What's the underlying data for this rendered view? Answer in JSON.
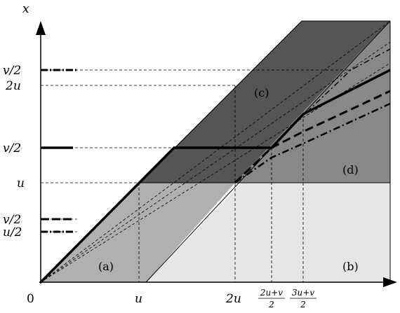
{
  "axes": {
    "y_label": "x",
    "origin_label": "0",
    "x_ticks": [
      "u",
      "2u"
    ],
    "x_frac_ticks": [
      {
        "num": "2u+v",
        "den": "2"
      },
      {
        "num": "3u+v",
        "den": "2"
      }
    ],
    "y_ticks": [
      "v/2",
      "2u",
      "v/2",
      "u",
      "v/2",
      "u/2"
    ]
  },
  "regions": [
    "(a)",
    "(b)",
    "(c)",
    "(d)"
  ],
  "colors": {
    "region_a": "#b0b0b0",
    "region_b": "#e6e6e6",
    "region_c": "#555555",
    "region_d": "#888888",
    "lines": "#000000"
  }
}
